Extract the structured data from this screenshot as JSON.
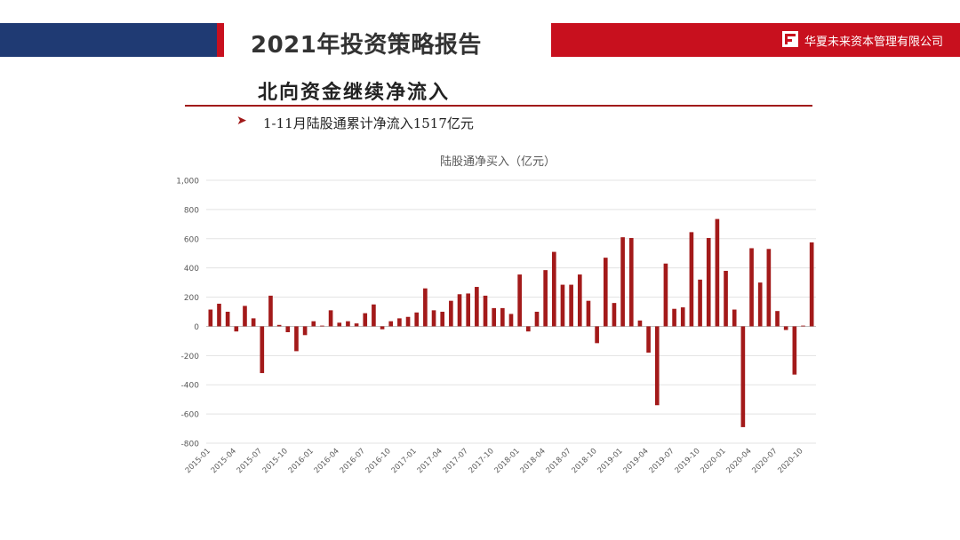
{
  "header": {
    "title": "2021年投资策略报告",
    "company": "华夏未来资本管理有限公司",
    "brand_color": "#c8101e",
    "navy_color": "#1f3a73"
  },
  "section": {
    "title": "北向资金继续净流入",
    "bullet_icon": "arrow-bullet",
    "bullet": "1-11月陆股通累计净流入1517亿元"
  },
  "chart_data": {
    "type": "bar",
    "title": "陆股通净买入（亿元）",
    "xlabel": "",
    "ylabel": "",
    "ylim": [
      -800,
      1000
    ],
    "yticks": [
      -800,
      -600,
      -400,
      -200,
      0,
      200,
      400,
      600,
      800,
      1000
    ],
    "ytick_labels": [
      "-800",
      "-600",
      "-400",
      "-200",
      "0",
      "200",
      "400",
      "600",
      "800",
      "1,000"
    ],
    "grid": true,
    "bar_color": "#a31a1a",
    "categories": [
      "2015-01",
      "2015-02",
      "2015-03",
      "2015-04",
      "2015-05",
      "2015-06",
      "2015-07",
      "2015-08",
      "2015-09",
      "2015-10",
      "2015-11",
      "2015-12",
      "2016-01",
      "2016-02",
      "2016-03",
      "2016-04",
      "2016-05",
      "2016-06",
      "2016-07",
      "2016-08",
      "2016-09",
      "2016-10",
      "2016-11",
      "2016-12",
      "2017-01",
      "2017-02",
      "2017-03",
      "2017-04",
      "2017-05",
      "2017-06",
      "2017-07",
      "2017-08",
      "2017-09",
      "2017-10",
      "2017-11",
      "2017-12",
      "2018-01",
      "2018-02",
      "2018-03",
      "2018-04",
      "2018-05",
      "2018-06",
      "2018-07",
      "2018-08",
      "2018-09",
      "2018-10",
      "2018-11",
      "2018-12",
      "2019-01",
      "2019-02",
      "2019-03",
      "2019-04",
      "2019-05",
      "2019-06",
      "2019-07",
      "2019-08",
      "2019-09",
      "2019-10",
      "2019-11",
      "2019-12",
      "2020-01",
      "2020-02",
      "2020-03",
      "2020-04",
      "2020-05",
      "2020-06",
      "2020-07",
      "2020-08",
      "2020-09",
      "2020-10",
      "2020-11"
    ],
    "tick_labels": [
      "2015-01",
      "2015-04",
      "2015-07",
      "2015-10",
      "2016-01",
      "2016-04",
      "2016-07",
      "2016-10",
      "2017-01",
      "2017-04",
      "2017-07",
      "2017-10",
      "2018-01",
      "2018-04",
      "2018-07",
      "2018-10",
      "2019-01",
      "2019-04",
      "2019-07",
      "2019-10",
      "2020-01",
      "2020-04",
      "2020-07",
      "2020-10"
    ],
    "values": [
      115,
      155,
      100,
      -35,
      140,
      55,
      -320,
      210,
      10,
      -40,
      -170,
      -60,
      35,
      5,
      110,
      25,
      35,
      20,
      90,
      150,
      -20,
      35,
      55,
      65,
      95,
      260,
      110,
      100,
      175,
      220,
      225,
      270,
      210,
      125,
      125,
      85,
      355,
      -35,
      100,
      385,
      510,
      285,
      285,
      355,
      175,
      -115,
      470,
      160,
      610,
      605,
      40,
      -180,
      -540,
      430,
      120,
      130,
      645,
      320,
      605,
      735,
      380,
      115,
      -690,
      535,
      300,
      530,
      105,
      -25,
      -330,
      5,
      575
    ]
  }
}
